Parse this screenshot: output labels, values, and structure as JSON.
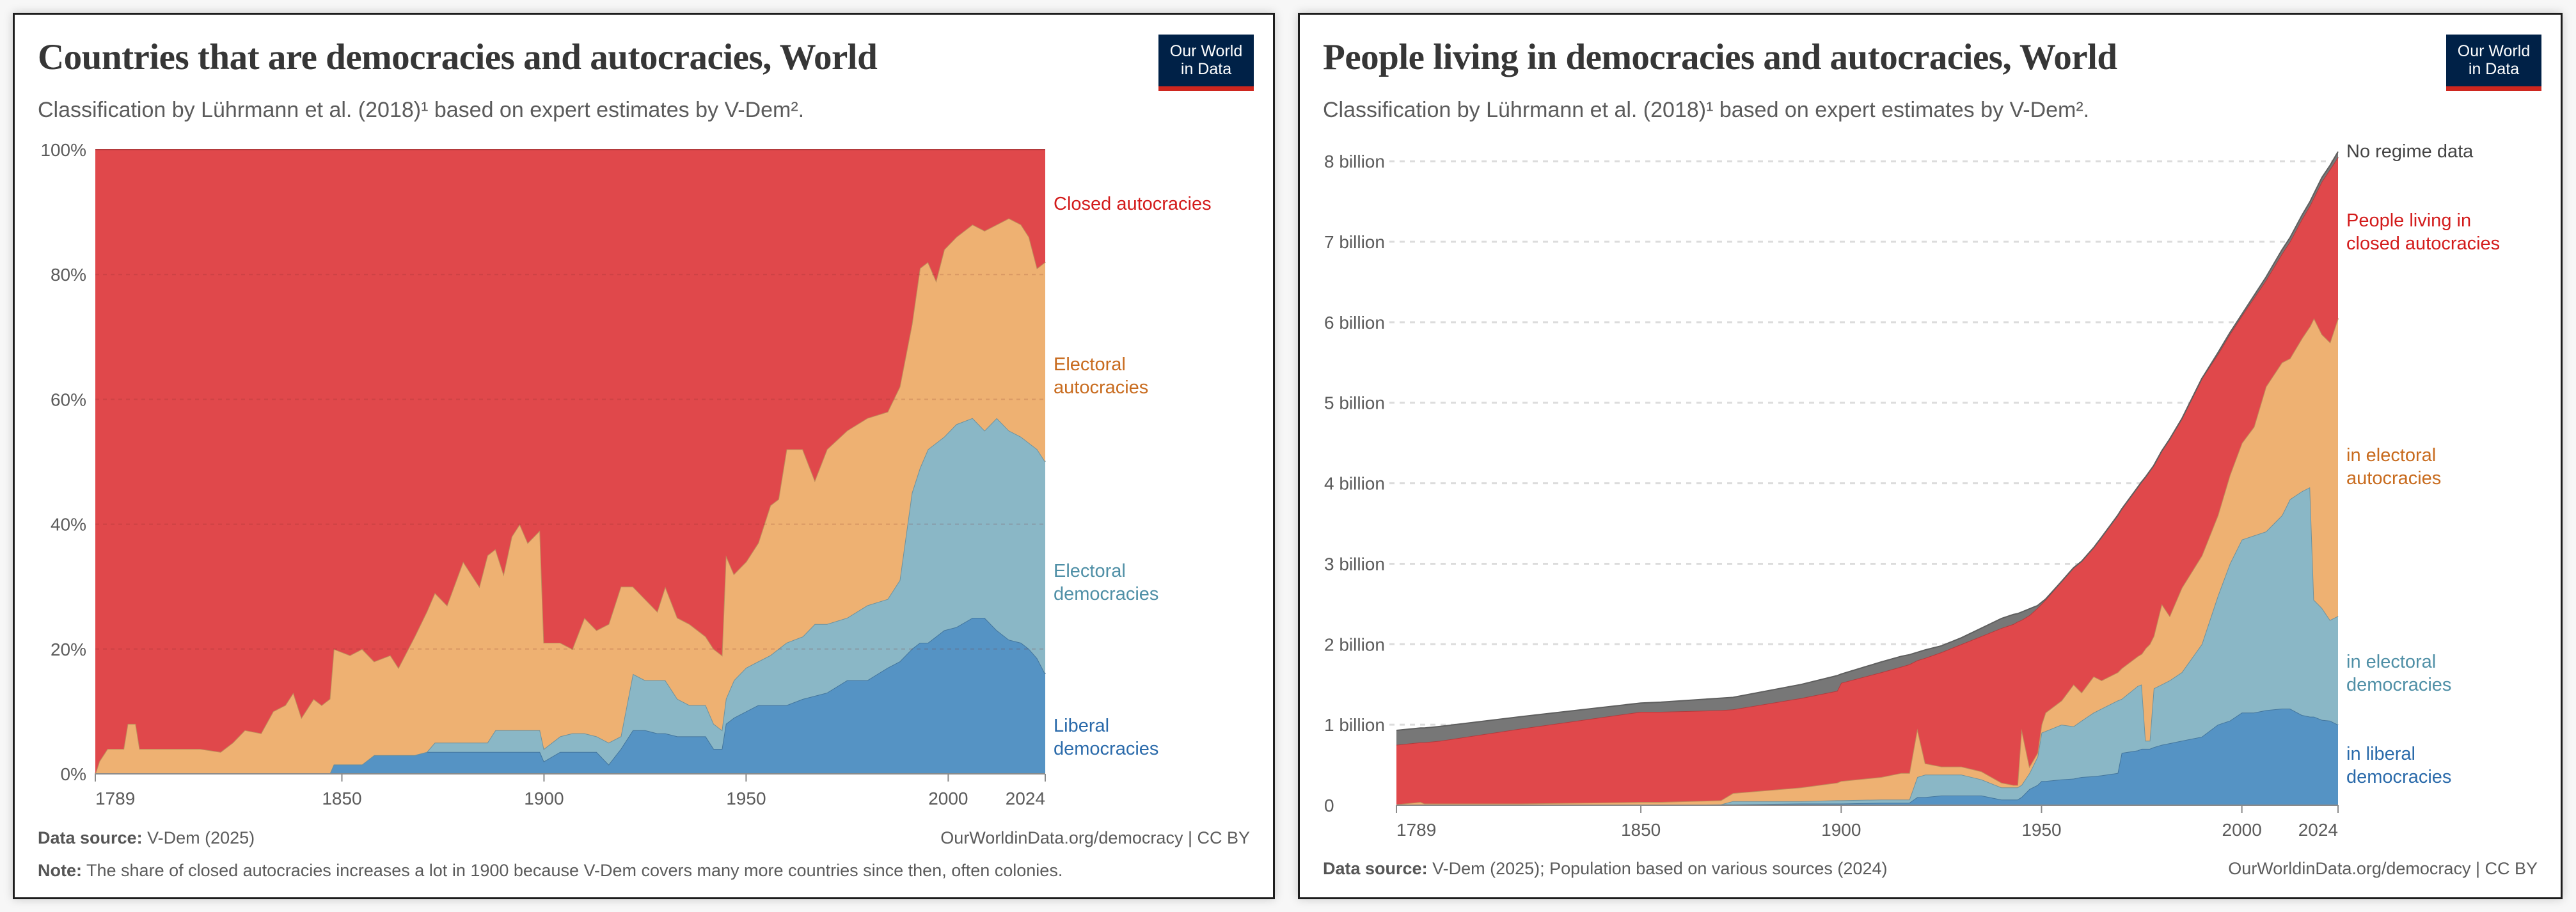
{
  "panels": [
    {
      "logo": {
        "line1": "Our World",
        "line2": "in Data"
      },
      "footer": {
        "source_label": "Data source:",
        "source_text": "V-Dem (2025)",
        "link": "OurWorldinData.org/democracy",
        "license": "| CC BY",
        "note_label": "Note:",
        "note_text": "The share of closed autocracies increases a lot in 1900 because V-Dem covers many more countries since then, often colonies."
      }
    },
    {
      "logo": {
        "line1": "Our World",
        "line2": "in Data"
      },
      "footer": {
        "source_label": "Data source:",
        "source_text": "V-Dem (2025); Population based on various sources (2024)",
        "link": "OurWorldinData.org/democracy",
        "license": "| CC BY"
      }
    }
  ],
  "chart_data": [
    {
      "type": "area",
      "stacked": true,
      "title": "Countries that are democracies and autocracies, World",
      "subtitle": "Classification by Lührmann et al. (2018)¹ based on expert estimates by V-Dem².",
      "xlabel": "",
      "ylabel": "",
      "xlim": [
        1789,
        2024
      ],
      "ylim": [
        0,
        100
      ],
      "x_ticks": [
        1789,
        1850,
        1900,
        1950,
        2000,
        2024
      ],
      "x_tick_labels": [
        "1789",
        "1850",
        "1900",
        "1950",
        "2000",
        "2024"
      ],
      "y_ticks": [
        0,
        20,
        40,
        60,
        80,
        100
      ],
      "y_tick_labels": [
        "0%",
        "20%",
        "40%",
        "60%",
        "80%",
        "100%"
      ],
      "grid": "horizontal dashed",
      "legend": "right, inline labels",
      "x": [
        1789,
        1790,
        1792,
        1796,
        1797,
        1799,
        1800,
        1815,
        1820,
        1823,
        1826,
        1830,
        1833,
        1836,
        1838,
        1840,
        1843,
        1845,
        1847,
        1848,
        1852,
        1855,
        1858,
        1862,
        1864,
        1868,
        1871,
        1873,
        1876,
        1880,
        1884,
        1886,
        1888,
        1890,
        1892,
        1894,
        1896,
        1899,
        1900,
        1904,
        1907,
        1910,
        1913,
        1916,
        1919,
        1922,
        1925,
        1928,
        1930,
        1933,
        1936,
        1940,
        1942,
        1944,
        1945,
        1947,
        1950,
        1953,
        1956,
        1958,
        1960,
        1964,
        1967,
        1970,
        1975,
        1980,
        1985,
        1988,
        1991,
        1993,
        1995,
        1997,
        1999,
        2002,
        2006,
        2009,
        2012,
        2015,
        2018,
        2020,
        2022,
        2024
      ],
      "series": [
        {
          "name": "Liberal democracies",
          "color": "#5593c4",
          "label_color": "#2a6aaa",
          "values": [
            0,
            0,
            0,
            0,
            0,
            0,
            0,
            0,
            0,
            0,
            0,
            0,
            0,
            0,
            0,
            0,
            0,
            0,
            0,
            1.5,
            1.5,
            1.5,
            3,
            3,
            3,
            3,
            3.5,
            3.5,
            3.5,
            3.5,
            3.5,
            3.5,
            3.5,
            3.5,
            3.5,
            3.5,
            3.5,
            3.5,
            2,
            3.5,
            3.5,
            3.5,
            3.5,
            1.5,
            4,
            7,
            7,
            6.5,
            6.5,
            6,
            6,
            6,
            4,
            4,
            8,
            9,
            10,
            11,
            11,
            11,
            11,
            12,
            12.5,
            13,
            15,
            15,
            17,
            18,
            20,
            21,
            21,
            22,
            23,
            23.5,
            25,
            25,
            23,
            21.5,
            21,
            20,
            18.5,
            16
          ]
        },
        {
          "name": "Electoral democracies",
          "color": "#8ab7c6",
          "label_color": "#4f8fa6",
          "values": [
            0,
            0,
            0,
            0,
            0,
            0,
            0,
            0,
            0,
            0,
            0,
            0,
            0,
            0,
            0,
            0,
            0,
            0,
            0,
            0,
            0,
            0,
            0,
            0,
            0,
            0,
            0,
            1.5,
            1.5,
            1.5,
            1.5,
            1.5,
            3.5,
            3.5,
            3.5,
            3.5,
            3.5,
            3.5,
            2,
            2.5,
            3,
            3,
            2.5,
            3.5,
            2,
            9,
            8,
            8.5,
            8.5,
            6,
            5,
            5,
            4,
            3,
            4,
            6,
            7,
            7,
            8,
            9,
            10,
            10,
            11.5,
            11,
            10,
            12,
            11,
            13,
            25,
            28,
            31,
            31,
            31,
            32.5,
            32,
            30,
            34,
            33.5,
            33,
            33,
            33.5,
            34
          ]
        },
        {
          "name": "Electoral autocracies",
          "color": "#eeb172",
          "label_color": "#c86b1e",
          "values": [
            0,
            2,
            4,
            4,
            8,
            8,
            4,
            4,
            3.5,
            5,
            7,
            6.5,
            10,
            11,
            13,
            9,
            12,
            11,
            12,
            18.5,
            17.5,
            18.5,
            15,
            16,
            14,
            19,
            22.5,
            24,
            22,
            29,
            25,
            30,
            29,
            25,
            31,
            33,
            30,
            32,
            17,
            15,
            13.5,
            18.5,
            17,
            19,
            24,
            14,
            13,
            11,
            15,
            13,
            13,
            11,
            12,
            12,
            23,
            17,
            17,
            19,
            24,
            24,
            31,
            30,
            23,
            28,
            30,
            30,
            30,
            31,
            27,
            32,
            30,
            26,
            30,
            30,
            31,
            32,
            31,
            34,
            34,
            33,
            29,
            32
          ]
        },
        {
          "name": "Closed autocracies",
          "color": "#e0484b",
          "label_color": "#d31b1b",
          "values": [
            100,
            98,
            96,
            96,
            92,
            92,
            96,
            96,
            96.5,
            95,
            93,
            93.5,
            90,
            89,
            87,
            91,
            88,
            89,
            88,
            80,
            81,
            80,
            82,
            81,
            83,
            78,
            74,
            71,
            73,
            66,
            70,
            65,
            64,
            68,
            62,
            60,
            63,
            61,
            79,
            79,
            80,
            75,
            77,
            76,
            70,
            70,
            72,
            74,
            70,
            75,
            76,
            78,
            80,
            81,
            65,
            68,
            66,
            63,
            57,
            56,
            48,
            48,
            53,
            48,
            45,
            43,
            42,
            38,
            28,
            19,
            18,
            21,
            16,
            14,
            12,
            13,
            12,
            11,
            12,
            14,
            19,
            18
          ]
        }
      ]
    },
    {
      "type": "area",
      "stacked": true,
      "title": "People living in democracies and autocracies, World",
      "subtitle": "Classification by Lührmann et al. (2018)¹ based on expert estimates by V-Dem².",
      "xlabel": "",
      "ylabel": "",
      "xlim": [
        1789,
        2024
      ],
      "ylim": [
        0,
        8.2
      ],
      "unit": "billion",
      "x_ticks": [
        1789,
        1850,
        1900,
        1950,
        2000,
        2024
      ],
      "x_tick_labels": [
        "1789",
        "1850",
        "1900",
        "1950",
        "2000",
        "2024"
      ],
      "y_ticks": [
        0,
        1,
        2,
        3,
        4,
        5,
        6,
        7,
        8
      ],
      "y_tick_labels": [
        "0",
        "1 billion",
        "2 billion",
        "3 billion",
        "4 billion",
        "5 billion",
        "6 billion",
        "7 billion",
        "8 billion"
      ],
      "grid": "horizontal dashed",
      "legend": "right, inline labels",
      "x": [
        1789,
        1795,
        1796,
        1800,
        1820,
        1850,
        1855,
        1870,
        1873,
        1890,
        1899,
        1900,
        1910,
        1915,
        1917,
        1919,
        1921,
        1925,
        1930,
        1935,
        1940,
        1943,
        1944,
        1945,
        1947,
        1949,
        1950,
        1951,
        1955,
        1958,
        1960,
        1963,
        1965,
        1969,
        1970,
        1974,
        1975,
        1976,
        1977,
        1978,
        1980,
        1982,
        1985,
        1990,
        1994,
        1997,
        2000,
        2003,
        2006,
        2010,
        2012,
        2015,
        2017,
        2018,
        2020,
        2022,
        2024
      ],
      "series": [
        {
          "name": "in liberal democracies",
          "color": "#5593c4",
          "label_color": "#2a6aaa",
          "values": [
            0,
            0,
            0,
            0,
            0,
            0,
            0,
            0.01,
            0.01,
            0.02,
            0.02,
            0.02,
            0.03,
            0.03,
            0.03,
            0.1,
            0.1,
            0.12,
            0.12,
            0.12,
            0.07,
            0.07,
            0.07,
            0.1,
            0.2,
            0.25,
            0.3,
            0.3,
            0.32,
            0.33,
            0.35,
            0.36,
            0.37,
            0.4,
            0.65,
            0.68,
            0.7,
            0.7,
            0.7,
            0.72,
            0.75,
            0.77,
            0.8,
            0.85,
            1.0,
            1.05,
            1.15,
            1.15,
            1.18,
            1.2,
            1.2,
            1.12,
            1.1,
            1.1,
            1.06,
            1.05,
            1.0
          ]
        },
        {
          "name": "in electoral democracies",
          "color": "#8ab7c6",
          "label_color": "#4f8fa6",
          "values": [
            0,
            0,
            0,
            0,
            0,
            0,
            0,
            0,
            0.04,
            0.03,
            0.04,
            0.04,
            0.04,
            0.04,
            0.04,
            0.25,
            0.28,
            0.26,
            0.26,
            0.2,
            0.15,
            0.15,
            0.15,
            0.15,
            0.2,
            0.35,
            0.6,
            0.62,
            0.68,
            0.65,
            0.7,
            0.79,
            0.83,
            0.9,
            0.67,
            0.8,
            0.8,
            0.1,
            0.1,
            0.73,
            0.75,
            0.78,
            0.85,
            1.15,
            1.6,
            1.95,
            2.15,
            2.2,
            2.22,
            2.4,
            2.6,
            2.78,
            2.85,
            1.45,
            1.39,
            1.25,
            1.35
          ]
        },
        {
          "name": "in electoral autocracies",
          "color": "#eeb172",
          "label_color": "#c86b1e",
          "values": [
            0.01,
            0.04,
            0.02,
            0.02,
            0.02,
            0.04,
            0.04,
            0.05,
            0.1,
            0.17,
            0.22,
            0.24,
            0.28,
            0.33,
            0.33,
            0.6,
            0.14,
            0.1,
            0.1,
            0.1,
            0.06,
            0.03,
            0.03,
            0.7,
            0.08,
            0.05,
            0.1,
            0.23,
            0.3,
            0.52,
            0.35,
            0.45,
            0.35,
            0.35,
            0.38,
            0.37,
            0.38,
            1.15,
            1.2,
            0.65,
            1.0,
            0.8,
            1.05,
            1.1,
            1.0,
            1.1,
            1.2,
            1.35,
            1.8,
            1.9,
            1.75,
            1.9,
            2.0,
            3.5,
            3.4,
            3.45,
            3.7
          ]
        },
        {
          "name": "People living in closed autocracies",
          "color": "#e0484b",
          "label_color": "#d31b1b",
          "values": [
            0.74,
            0.74,
            0.76,
            0.78,
            0.93,
            1.12,
            1.12,
            1.12,
            1.04,
            1.11,
            1.14,
            1.22,
            1.3,
            1.32,
            1.35,
            0.85,
            1.31,
            1.42,
            1.52,
            1.68,
            1.92,
            2.0,
            2.03,
            1.35,
            1.88,
            1.8,
            1.5,
            1.4,
            1.48,
            1.45,
            1.63,
            1.6,
            1.78,
            1.95,
            1.98,
            2.1,
            2.14,
            2.13,
            2.15,
            2.12,
            1.9,
            2.2,
            2.1,
            2.2,
            2.0,
            1.75,
            1.58,
            1.6,
            1.32,
            1.35,
            1.45,
            1.48,
            1.5,
            1.5,
            1.9,
            2.15,
            2.0
          ]
        },
        {
          "name": "No regime data",
          "color": "#777777",
          "label_color": "#444444",
          "values": [
            0.18,
            0.18,
            0.18,
            0.18,
            0.15,
            0.11,
            0.12,
            0.15,
            0.15,
            0.17,
            0.19,
            0.11,
            0.13,
            0.13,
            0.12,
            0.1,
            0.1,
            0.08,
            0.08,
            0.1,
            0.12,
            0.12,
            0.1,
            0.1,
            0.08,
            0.03,
            0.02,
            0.01,
            0,
            0,
            0,
            0,
            0,
            0,
            0,
            0,
            0,
            0,
            0,
            0,
            0,
            0,
            0,
            0,
            0.02,
            0.02,
            0.02,
            0.03,
            0.04,
            0.05,
            0.05,
            0.05,
            0.05,
            0.05,
            0.05,
            0.05,
            0.07
          ]
        }
      ]
    }
  ]
}
